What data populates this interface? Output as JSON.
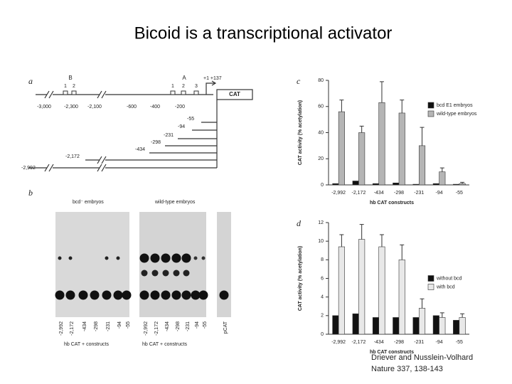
{
  "title": "Bicoid is a transcriptional activator",
  "citation": [
    "Driever and Nusslein-Volhard",
    "Nature 337, 138-143"
  ],
  "panel_a": {
    "label": "a",
    "enhancer_B": {
      "name": "B",
      "sites": [
        "1",
        "2"
      ]
    },
    "enhancer_A": {
      "name": "A",
      "sites": [
        "1",
        "2",
        "3"
      ]
    },
    "start": "+1 +137",
    "reporter": "CAT",
    "scale": [
      "-3,000",
      "-2,300",
      "-2,100",
      "-600",
      "-400",
      "-200"
    ],
    "deletions": [
      "-55",
      "-94",
      "-231",
      "-298",
      "-434",
      "-2,172",
      "-2,992"
    ]
  },
  "panel_b": {
    "label": "b",
    "groups": [
      "bcd⁻ embryos",
      "wild-type embryos"
    ],
    "lanes_left": [
      "-2,992",
      "-2,172",
      "-434",
      "-298",
      "-231",
      "-94",
      "-55"
    ],
    "lanes_right": [
      "-2,992",
      "-2,172",
      "-434",
      "-298",
      "-231",
      "-94",
      "-55"
    ],
    "control": "pCAT",
    "axis_labels": [
      "hb CAT + constructs",
      "hb CAT + constructs"
    ]
  },
  "chart_data": [
    {
      "type": "bar",
      "label": "c",
      "ylabel": "CAT activity (% acetylation)",
      "xlabel": "hb CAT constructs",
      "categories": [
        "-2,992",
        "-2,172",
        "-434",
        "-298",
        "-231",
        "-94",
        "-55"
      ],
      "series": [
        {
          "name": "bcd E1 embryos",
          "color": "#111111",
          "values": [
            1,
            3,
            1,
            1.5,
            0.5,
            1,
            0.5
          ]
        },
        {
          "name": "wild-type embryos",
          "color": "#b5b5b5",
          "values": [
            56,
            40,
            63,
            55,
            30,
            10,
            1
          ],
          "errors": [
            9,
            5,
            16,
            10,
            14,
            3,
            1
          ]
        }
      ],
      "ylim": [
        0,
        80
      ],
      "yticks": [
        0,
        20,
        40,
        60,
        80
      ],
      "legend": "upper right"
    },
    {
      "type": "bar",
      "label": "d",
      "ylabel": "CAT activity (% acetylation)",
      "xlabel": "hb CAT constructs",
      "categories": [
        "-2,992",
        "-2,172",
        "-434",
        "-298",
        "-231",
        "-94",
        "-55"
      ],
      "series": [
        {
          "name": "without bcd",
          "color": "#111111",
          "values": [
            2,
            2.2,
            1.8,
            1.8,
            1.8,
            2,
            1.5
          ]
        },
        {
          "name": "with bcd",
          "color": "#e8e8e8",
          "values": [
            9.4,
            10.2,
            9.4,
            8,
            2.8,
            1.8,
            1.8
          ],
          "errors": [
            1.3,
            1.6,
            1.3,
            1.6,
            1,
            0.5,
            0.4
          ]
        }
      ],
      "ylim": [
        0,
        12
      ],
      "yticks": [
        0,
        2,
        4,
        6,
        8,
        10,
        12
      ],
      "legend": "center right"
    }
  ]
}
